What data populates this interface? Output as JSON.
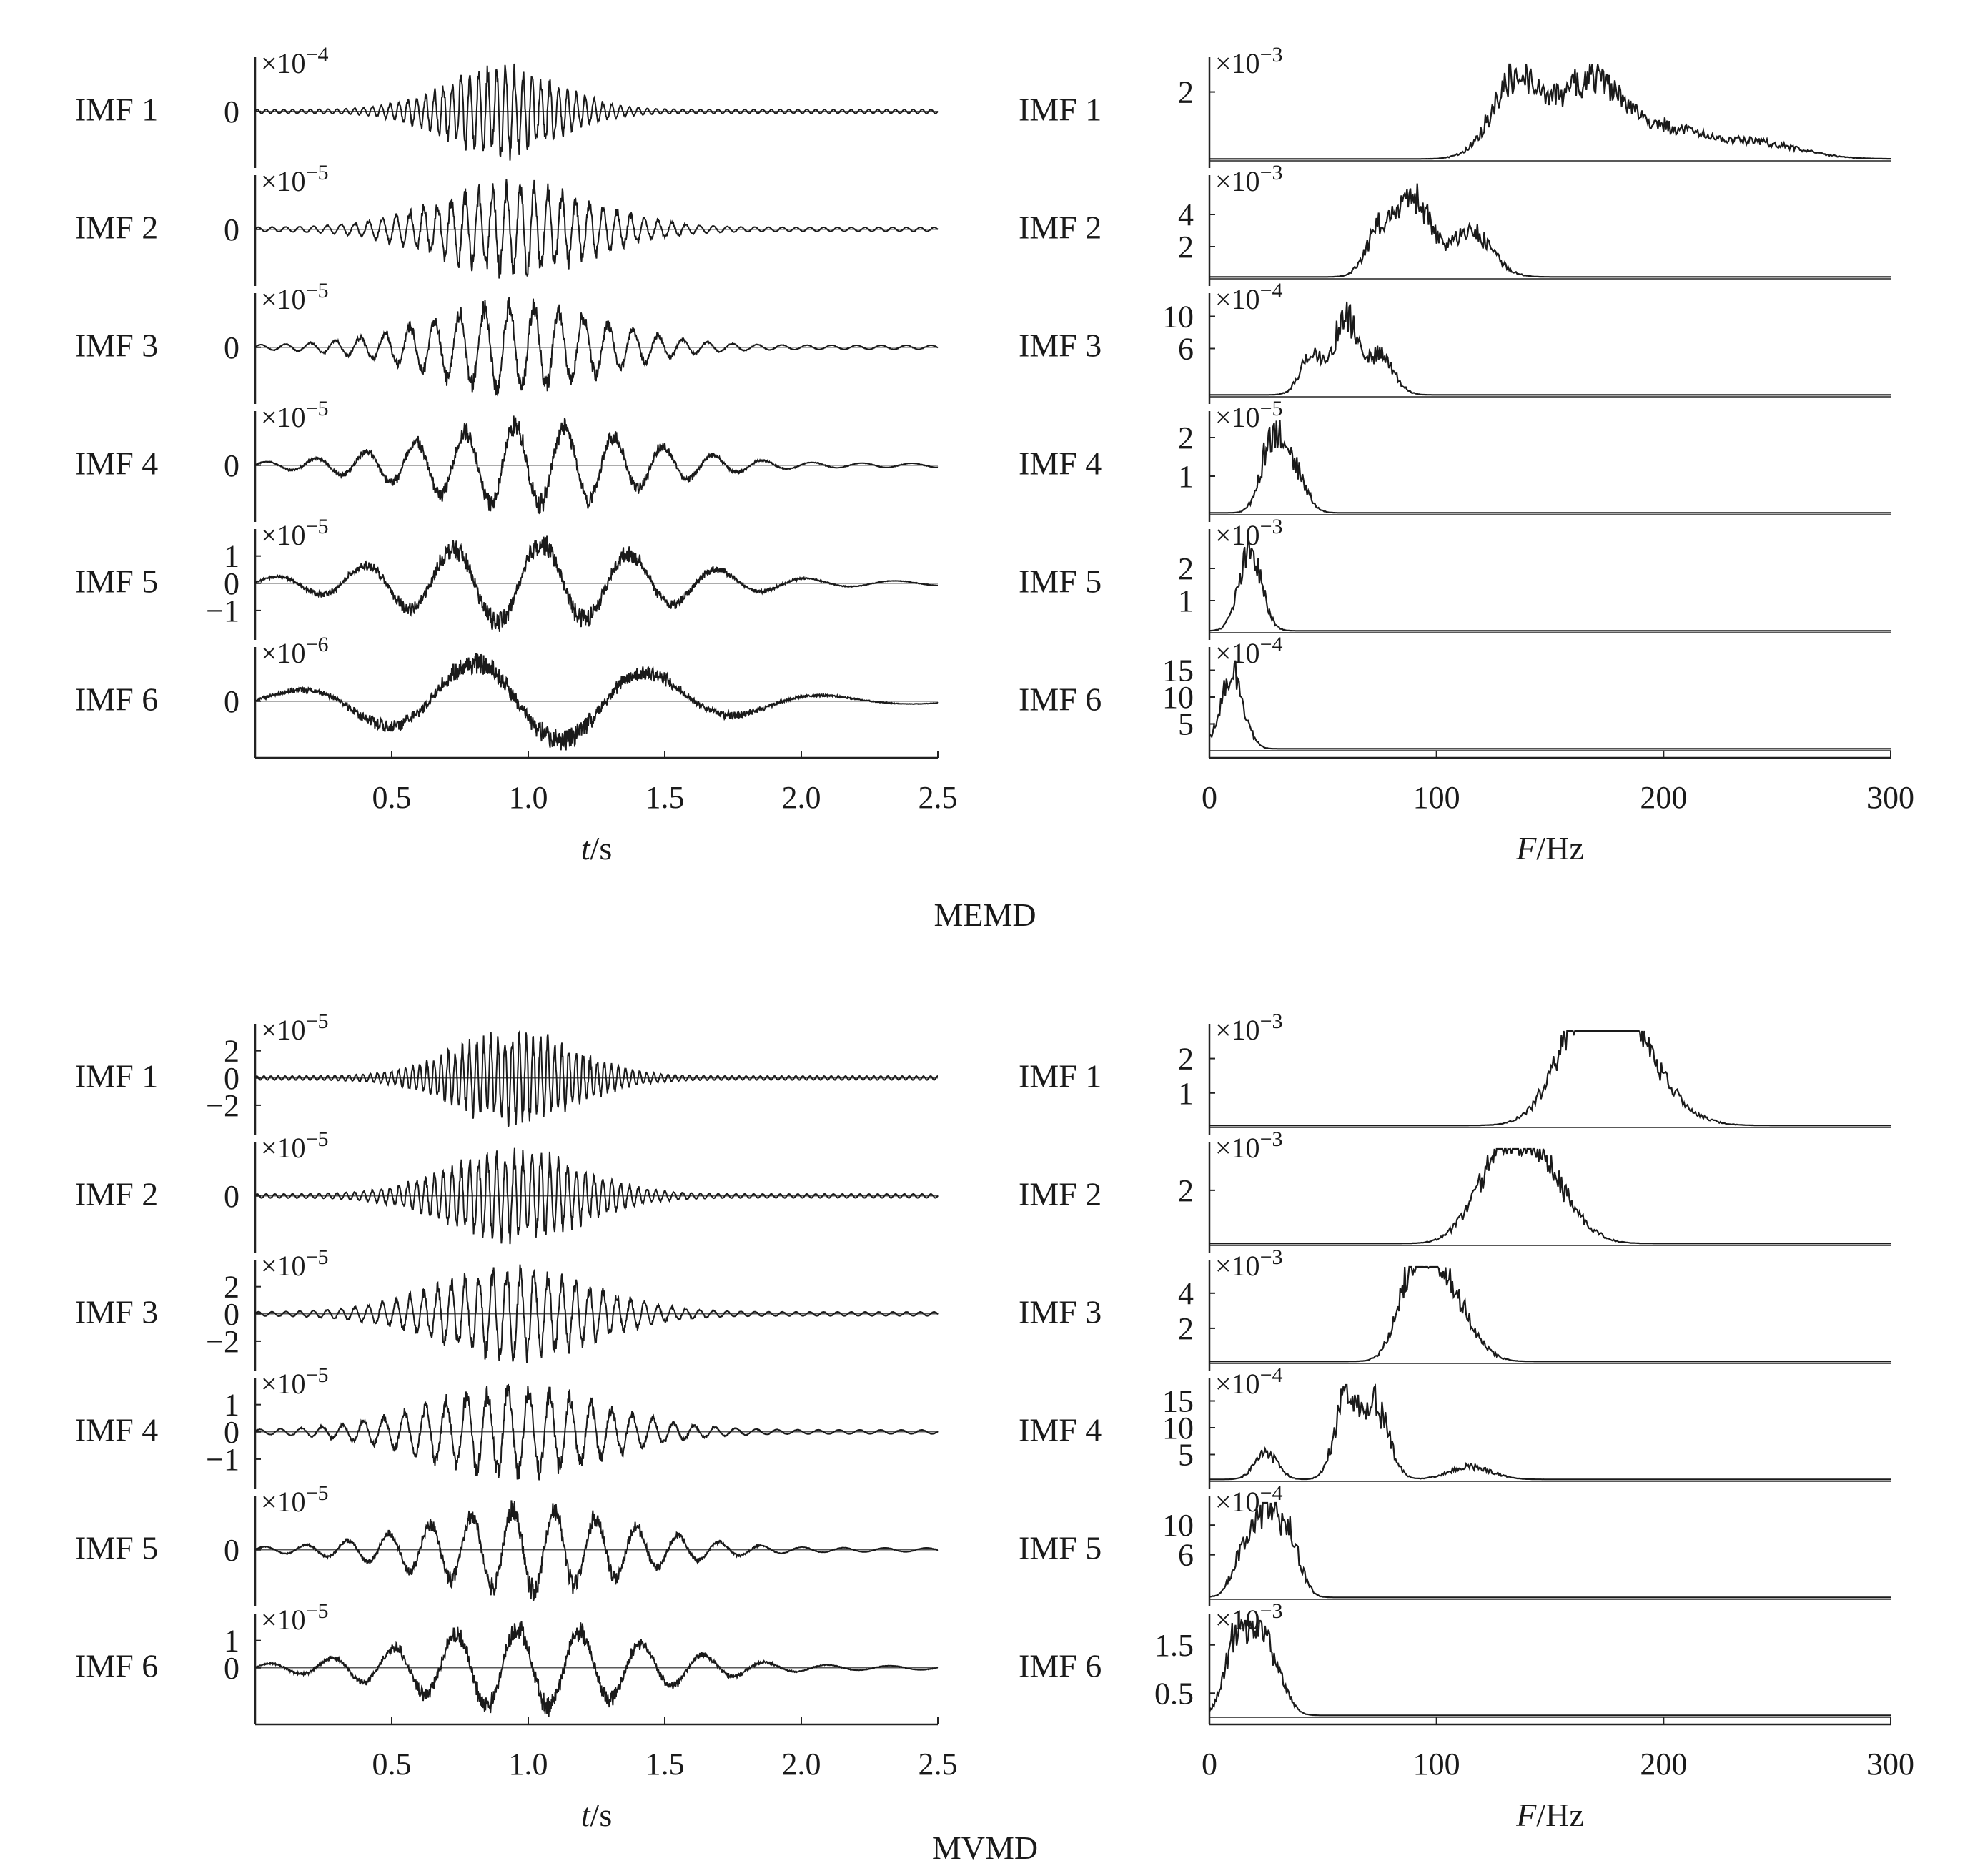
{
  "groups": [
    {
      "key": "memd",
      "title": "MEMD"
    },
    {
      "key": "mvmd",
      "title": "MVMD"
    }
  ],
  "time_axis": {
    "label_var": "t",
    "label_unit": "/s",
    "range": [
      0,
      2.5
    ],
    "ticks": [
      "0.5",
      "1.0",
      "1.5",
      "2.0",
      "2.5"
    ]
  },
  "freq_axis": {
    "label_var": "F",
    "label_unit": "/Hz",
    "range": [
      0,
      300
    ],
    "ticks": [
      "0",
      "100",
      "200",
      "300"
    ]
  },
  "chart_data": [
    {
      "type": "line",
      "group": "MEMD",
      "domain": "time",
      "xlabel": "t/s",
      "xlim": [
        0,
        2.5
      ],
      "series": [
        {
          "name": "IMF 1",
          "exponent": "-4",
          "yticks": [
            "0"
          ],
          "peak_time": 0.9,
          "envelope_width": 0.2,
          "freq_hz": 140,
          "amplitude": 1.0
        },
        {
          "name": "IMF 2",
          "exponent": "-5",
          "yticks": [
            "0"
          ],
          "peak_time": 0.95,
          "envelope_width": 0.28,
          "freq_hz": 90,
          "amplitude": 1.0
        },
        {
          "name": "IMF 3",
          "exponent": "-5",
          "yticks": [
            "0"
          ],
          "peak_time": 0.95,
          "envelope_width": 0.32,
          "freq_hz": 50,
          "amplitude": 1.0
        },
        {
          "name": "IMF 4",
          "exponent": "-5",
          "yticks": [
            "0"
          ],
          "peak_time": 1.0,
          "envelope_width": 0.38,
          "freq_hz": 25,
          "amplitude": 1.0
        },
        {
          "name": "IMF 5",
          "exponent": "-5",
          "yticks": [
            "1",
            "0",
            "−1"
          ],
          "peak_time": 1.0,
          "envelope_width": 0.45,
          "freq_hz": 14,
          "amplitude": 1.6
        },
        {
          "name": "IMF 6",
          "exponent": "-6",
          "yticks": [
            "0"
          ],
          "peak_time": 1.0,
          "envelope_width": 0.5,
          "freq_hz": 7,
          "amplitude": 1.0
        }
      ]
    },
    {
      "type": "line",
      "group": "MEMD",
      "domain": "frequency",
      "xlabel": "F/Hz",
      "xlim": [
        0,
        300
      ],
      "series": [
        {
          "name": "IMF 1",
          "exponent": "-3",
          "yticks": [
            "2"
          ],
          "ymax": 2.8,
          "peaks": [
            {
              "f": 135,
              "a": 2.8
            },
            {
              "f": 168,
              "a": 2.8
            },
            {
              "f": 200,
              "a": 1.0
            },
            {
              "f": 240,
              "a": 0.6
            }
          ]
        },
        {
          "name": "IMF 2",
          "exponent": "-3",
          "yticks": [
            "4",
            "2"
          ],
          "ymax": 6.0,
          "peaks": [
            {
              "f": 90,
              "a": 6.0
            },
            {
              "f": 75,
              "a": 3.5
            },
            {
              "f": 115,
              "a": 3.5
            }
          ]
        },
        {
          "name": "IMF 3",
          "exponent": "-4",
          "yticks": [
            "10",
            "6"
          ],
          "ymax": 12.0,
          "peaks": [
            {
              "f": 60,
              "a": 12.0
            },
            {
              "f": 45,
              "a": 6.0
            },
            {
              "f": 75,
              "a": 6.0
            }
          ]
        },
        {
          "name": "IMF 4",
          "exponent": "-5",
          "yticks": [
            "2",
            "1"
          ],
          "ymax": 2.5,
          "peaks": [
            {
              "f": 28,
              "a": 2.5
            },
            {
              "f": 38,
              "a": 1.2
            }
          ]
        },
        {
          "name": "IMF 5",
          "exponent": "-3",
          "yticks": [
            "2",
            "1"
          ],
          "ymax": 3.0,
          "peaks": [
            {
              "f": 18,
              "a": 3.0
            }
          ]
        },
        {
          "name": "IMF 6",
          "exponent": "-4",
          "yticks": [
            "15",
            "10",
            "5"
          ],
          "ymax": 18.0,
          "peaks": [
            {
              "f": 10,
              "a": 18.0
            }
          ]
        }
      ]
    },
    {
      "type": "line",
      "group": "MVMD",
      "domain": "time",
      "xlabel": "t/s",
      "xlim": [
        0,
        2.5
      ],
      "series": [
        {
          "name": "IMF 1",
          "exponent": "-5",
          "yticks": [
            "2",
            "0",
            "−2"
          ],
          "peak_time": 0.95,
          "envelope_width": 0.22,
          "freq_hz": 175,
          "amplitude": 3.5
        },
        {
          "name": "IMF 2",
          "exponent": "-5",
          "yticks": [
            "0"
          ],
          "peak_time": 0.95,
          "envelope_width": 0.24,
          "freq_hz": 140,
          "amplitude": 1.0
        },
        {
          "name": "IMF 3",
          "exponent": "-5",
          "yticks": [
            "2",
            "0",
            "−2"
          ],
          "peak_time": 0.95,
          "envelope_width": 0.28,
          "freq_hz": 90,
          "amplitude": 3.0
        },
        {
          "name": "IMF 4",
          "exponent": "-5",
          "yticks": [
            "1",
            "0",
            "−1"
          ],
          "peak_time": 0.95,
          "envelope_width": 0.32,
          "freq_hz": 60,
          "amplitude": 1.5
        },
        {
          "name": "IMF 5",
          "exponent": "-5",
          "yticks": [
            "0"
          ],
          "peak_time": 1.0,
          "envelope_width": 0.36,
          "freq_hz": 30,
          "amplitude": 1.0
        },
        {
          "name": "IMF 6",
          "exponent": "-5",
          "yticks": [
            "1",
            "0"
          ],
          "peak_time": 1.0,
          "envelope_width": 0.4,
          "freq_hz": 20,
          "amplitude": 1.6
        }
      ]
    },
    {
      "type": "line",
      "group": "MVMD",
      "domain": "frequency",
      "xlabel": "F/Hz",
      "xlim": [
        0,
        300
      ],
      "series": [
        {
          "name": "IMF 1",
          "exponent": "-3",
          "yticks": [
            "2",
            "1"
          ],
          "ymax": 2.8,
          "peaks": [
            {
              "f": 175,
              "a": 2.8
            },
            {
              "f": 165,
              "a": 2.4
            },
            {
              "f": 190,
              "a": 1.5
            }
          ]
        },
        {
          "name": "IMF 2",
          "exponent": "-3",
          "yticks": [
            "2"
          ],
          "ymax": 3.5,
          "peaks": [
            {
              "f": 135,
              "a": 3.5
            },
            {
              "f": 150,
              "a": 2.2
            },
            {
              "f": 120,
              "a": 1.5
            }
          ]
        },
        {
          "name": "IMF 3",
          "exponent": "-3",
          "yticks": [
            "4",
            "2"
          ],
          "ymax": 5.5,
          "peaks": [
            {
              "f": 90,
              "a": 5.5
            },
            {
              "f": 100,
              "a": 4.0
            },
            {
              "f": 110,
              "a": 2.5
            }
          ]
        },
        {
          "name": "IMF 4",
          "exponent": "-4",
          "yticks": [
            "15",
            "10",
            "5"
          ],
          "ymax": 18.0,
          "peaks": [
            {
              "f": 60,
              "a": 18.0
            },
            {
              "f": 73,
              "a": 17.0
            },
            {
              "f": 25,
              "a": 6.0
            },
            {
              "f": 115,
              "a": 3.0
            }
          ]
        },
        {
          "name": "IMF 5",
          "exponent": "-4",
          "yticks": [
            "10",
            "6"
          ],
          "ymax": 13.0,
          "peaks": [
            {
              "f": 25,
              "a": 13.0
            },
            {
              "f": 35,
              "a": 10.0
            },
            {
              "f": 15,
              "a": 7.0
            }
          ]
        },
        {
          "name": "IMF 6",
          "exponent": "-3",
          "yticks": [
            "1.5",
            "0.5"
          ],
          "ymax": 2.0,
          "peaks": [
            {
              "f": 12,
              "a": 2.0
            },
            {
              "f": 22,
              "a": 1.8
            },
            {
              "f": 30,
              "a": 0.8
            }
          ]
        }
      ]
    }
  ]
}
